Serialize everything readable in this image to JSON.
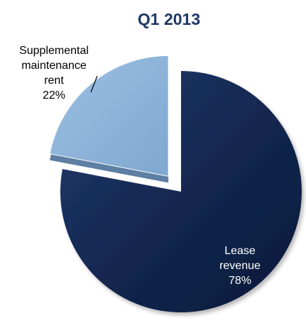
{
  "chart_data": {
    "type": "pie",
    "title": "Q1 2013",
    "slices": [
      {
        "label_lines": [
          "Lease",
          "revenue"
        ],
        "percent_label": "78%",
        "value": 78,
        "color": "#12264e",
        "exploded": false
      },
      {
        "label_lines": [
          "Supplemental",
          "maintenance",
          "rent"
        ],
        "percent_label": "22%",
        "value": 22,
        "color": "#8fb4d9",
        "exploded": true
      }
    ]
  }
}
